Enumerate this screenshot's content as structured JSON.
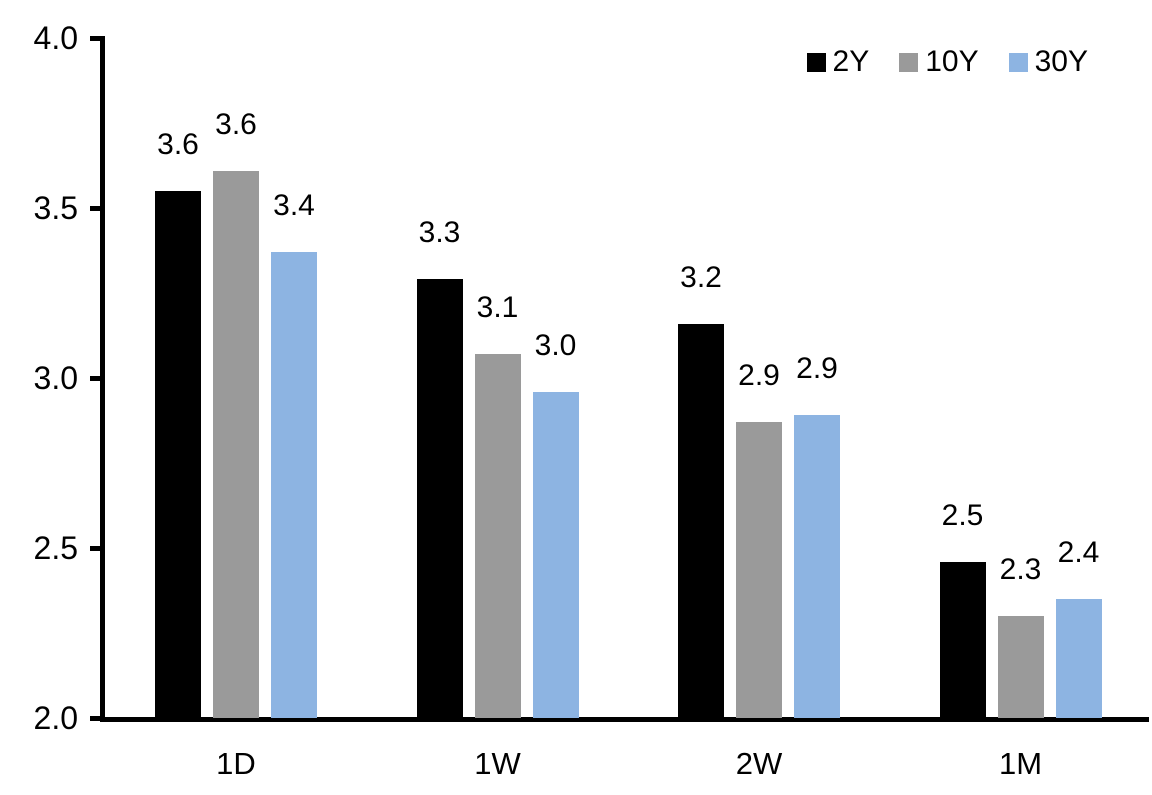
{
  "chart_data": {
    "type": "bar",
    "title": "",
    "xlabel": "",
    "ylabel": "",
    "categories": [
      "1D",
      "1W",
      "2W",
      "1M"
    ],
    "series": [
      {
        "name": "2Y",
        "color": "#000000",
        "values": [
          3.55,
          3.29,
          3.16,
          2.46
        ],
        "labels": [
          "3.6",
          "3.3",
          "3.2",
          "2.5"
        ]
      },
      {
        "name": "10Y",
        "color": "#9A9A9A",
        "values": [
          3.61,
          3.07,
          2.87,
          2.3
        ],
        "labels": [
          "3.6",
          "3.1",
          "2.9",
          "2.3"
        ]
      },
      {
        "name": "30Y",
        "color": "#8DB4E2",
        "values": [
          3.37,
          2.96,
          2.89,
          2.35
        ],
        "labels": [
          "3.4",
          "3.0",
          "2.9",
          "2.4"
        ]
      }
    ],
    "ylim": [
      2.0,
      4.0
    ],
    "y_ticks": [
      {
        "value": 4.0,
        "label": "4.0"
      },
      {
        "value": 3.5,
        "label": "3.5"
      },
      {
        "value": 3.0,
        "label": "3.0"
      },
      {
        "value": 2.5,
        "label": "2.5"
      },
      {
        "value": 2.0,
        "label": "2.0"
      }
    ],
    "grid": false,
    "legend_position": "top-right",
    "axis_color": "#000000",
    "text_color": "#000000",
    "background_color": "#ffffff"
  }
}
